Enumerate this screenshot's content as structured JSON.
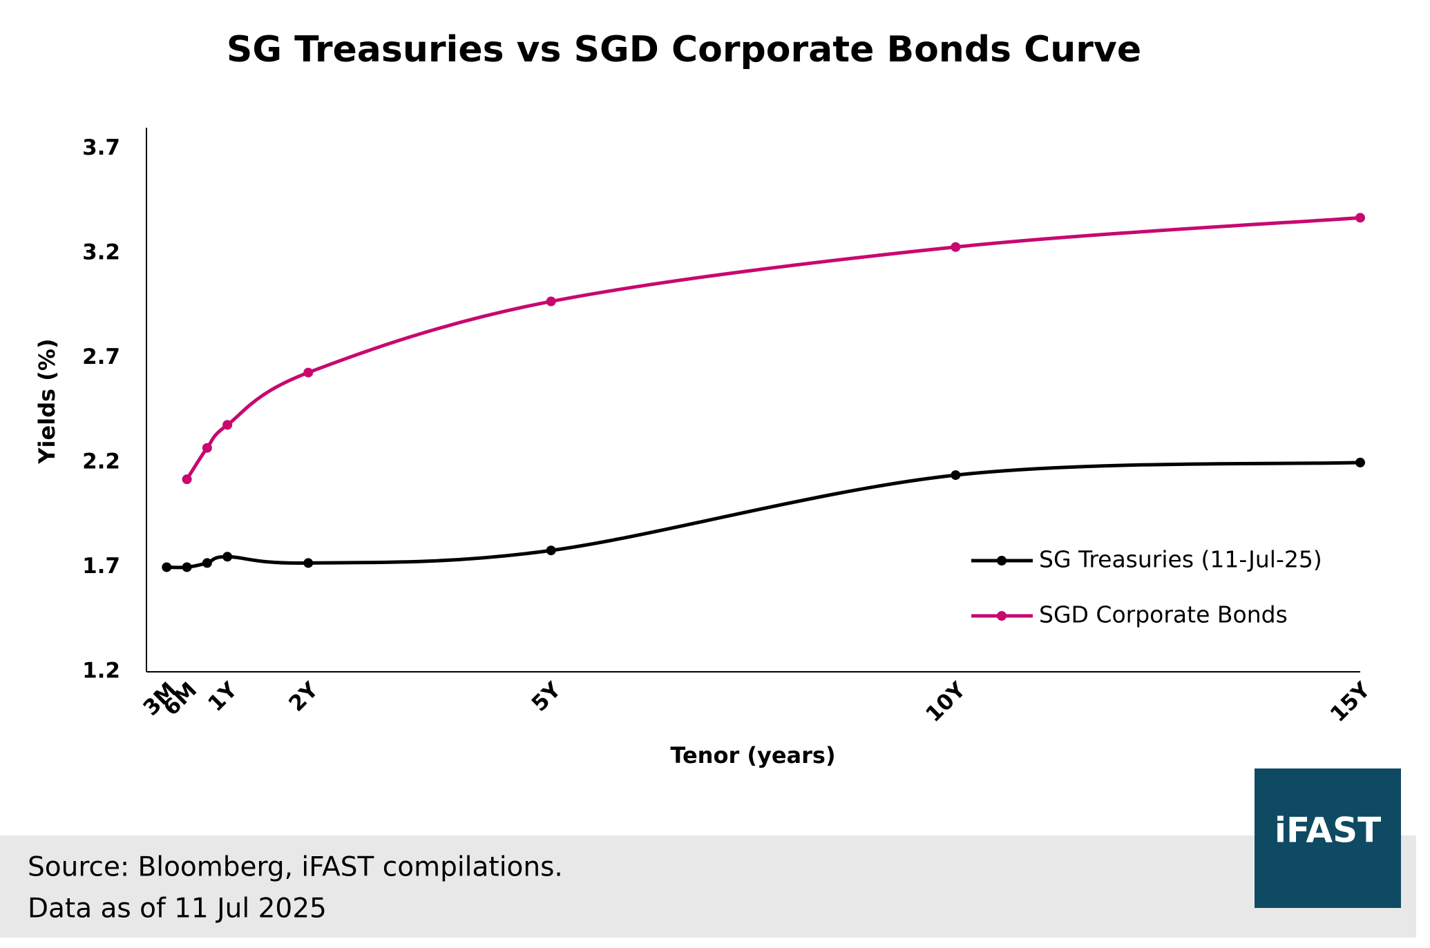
{
  "chart_data": {
    "type": "line",
    "title": "SG Treasuries vs SGD Corporate Bonds Curve",
    "x_label": "Tenor (years)",
    "y_label": "Yields (%)",
    "x": [
      0.25,
      0.5,
      0.75,
      1,
      2,
      5,
      10,
      15
    ],
    "series": [
      {
        "name": "SG Treasuries (11-Jul-25)",
        "color": "#000000",
        "values": [
          1.7,
          1.7,
          1.72,
          1.75,
          1.72,
          1.78,
          2.14,
          2.2
        ]
      },
      {
        "name": "SGD Corporate Bonds",
        "color": "#c8086f",
        "values": [
          null,
          2.12,
          2.27,
          2.38,
          2.63,
          2.97,
          3.23,
          3.37
        ]
      }
    ],
    "xlim": [
      0,
      15
    ],
    "xticks": [
      {
        "value": 0.25,
        "label": "3M"
      },
      {
        "value": 0.5,
        "label": "6M"
      },
      {
        "value": 1,
        "label": "1Y"
      },
      {
        "value": 2,
        "label": "2Y"
      },
      {
        "value": 5,
        "label": "5Y"
      },
      {
        "value": 10,
        "label": "10Y"
      },
      {
        "value": 15,
        "label": "15Y"
      }
    ],
    "ylim": [
      1.2,
      3.8
    ],
    "yticks": [
      1.2,
      1.7,
      2.2,
      2.7,
      3.2,
      3.7
    ],
    "grid": false,
    "legend": "lower right"
  },
  "footer": {
    "source": "Source: Bloomberg, iFAST compilations.",
    "note": "Data as of 11 Jul 2025",
    "logo": "iFAST"
  }
}
